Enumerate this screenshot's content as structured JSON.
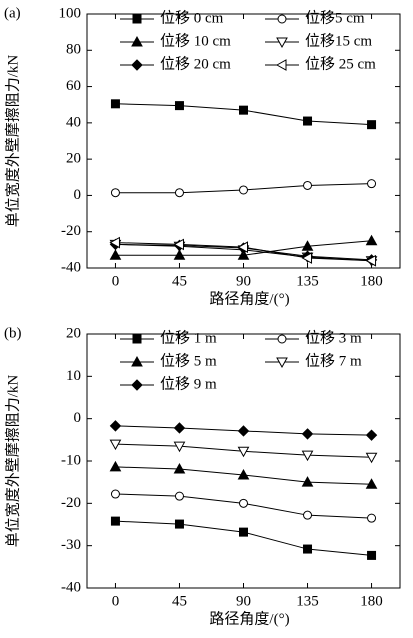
{
  "chart_data": [
    {
      "type": "line",
      "panel_label": "(a)",
      "xlabel": "路径角度/(°)",
      "ylabel": "单位宽度外壁摩擦阻力/kN",
      "x": [
        0,
        45,
        90,
        135,
        180
      ],
      "xlim": [
        -20,
        200
      ],
      "xticks": [
        0,
        45,
        90,
        135,
        180
      ],
      "ylim": [
        -40,
        100
      ],
      "yticks": [
        -40,
        -20,
        0,
        20,
        40,
        60,
        80,
        100
      ],
      "legend": "upper-center",
      "series": [
        {
          "name": "位移 0 cm",
          "color": "#000000",
          "marker": "square",
          "filled": true,
          "values": [
            50.5,
            49.5,
            47,
            41,
            39
          ]
        },
        {
          "name": "位移5 cm",
          "color": "#000000",
          "marker": "circle",
          "filled": false,
          "values": [
            1.5,
            1.5,
            3,
            5.5,
            6.5
          ]
        },
        {
          "name": "位移 10 cm",
          "color": "#000000",
          "marker": "triangle",
          "filled": true,
          "values": [
            -33,
            -33,
            -33,
            -28,
            -25
          ]
        },
        {
          "name": "位移15 cm",
          "color": "#000000",
          "marker": "triangle-down",
          "filled": false,
          "values": [
            -27,
            -28,
            -30,
            -34,
            -36
          ]
        },
        {
          "name": "位移 20 cm",
          "color": "#000000",
          "marker": "diamond",
          "filled": true,
          "values": [
            -27,
            -27.5,
            -29,
            -33.5,
            -35.5
          ]
        },
        {
          "name": "位移 25 cm",
          "color": "#000000",
          "marker": "triangle-left",
          "filled": false,
          "values": [
            -26,
            -27,
            -28.5,
            -34.5,
            -36
          ]
        }
      ]
    },
    {
      "type": "line",
      "panel_label": "(b)",
      "xlabel": "路径角度/(°)",
      "ylabel": "单位宽度外壁摩擦阻力/kN",
      "x": [
        0,
        45,
        90,
        135,
        180
      ],
      "xlim": [
        -20,
        200
      ],
      "xticks": [
        0,
        45,
        90,
        135,
        180
      ],
      "ylim": [
        -40,
        20
      ],
      "yticks": [
        -40,
        -30,
        -20,
        -10,
        0,
        10,
        20
      ],
      "legend": "upper-center",
      "series": [
        {
          "name": "位移 1 m",
          "color": "#000000",
          "marker": "square",
          "filled": true,
          "values": [
            -24.2,
            -24.9,
            -26.8,
            -30.8,
            -32.3
          ]
        },
        {
          "name": "位移 3 m",
          "color": "#000000",
          "marker": "circle",
          "filled": false,
          "values": [
            -17.8,
            -18.3,
            -20,
            -22.8,
            -23.5
          ]
        },
        {
          "name": "位移 5 m",
          "color": "#000000",
          "marker": "triangle",
          "filled": true,
          "values": [
            -11.4,
            -11.9,
            -13.3,
            -15,
            -15.5
          ]
        },
        {
          "name": "位移 7 m",
          "color": "#000000",
          "marker": "triangle-down",
          "filled": false,
          "values": [
            -6,
            -6.5,
            -7.7,
            -8.6,
            -9.1
          ]
        },
        {
          "name": "位移 9 m",
          "color": "#000000",
          "marker": "diamond",
          "filled": true,
          "values": [
            -1.7,
            -2.2,
            -2.9,
            -3.6,
            -3.9
          ]
        }
      ]
    }
  ]
}
